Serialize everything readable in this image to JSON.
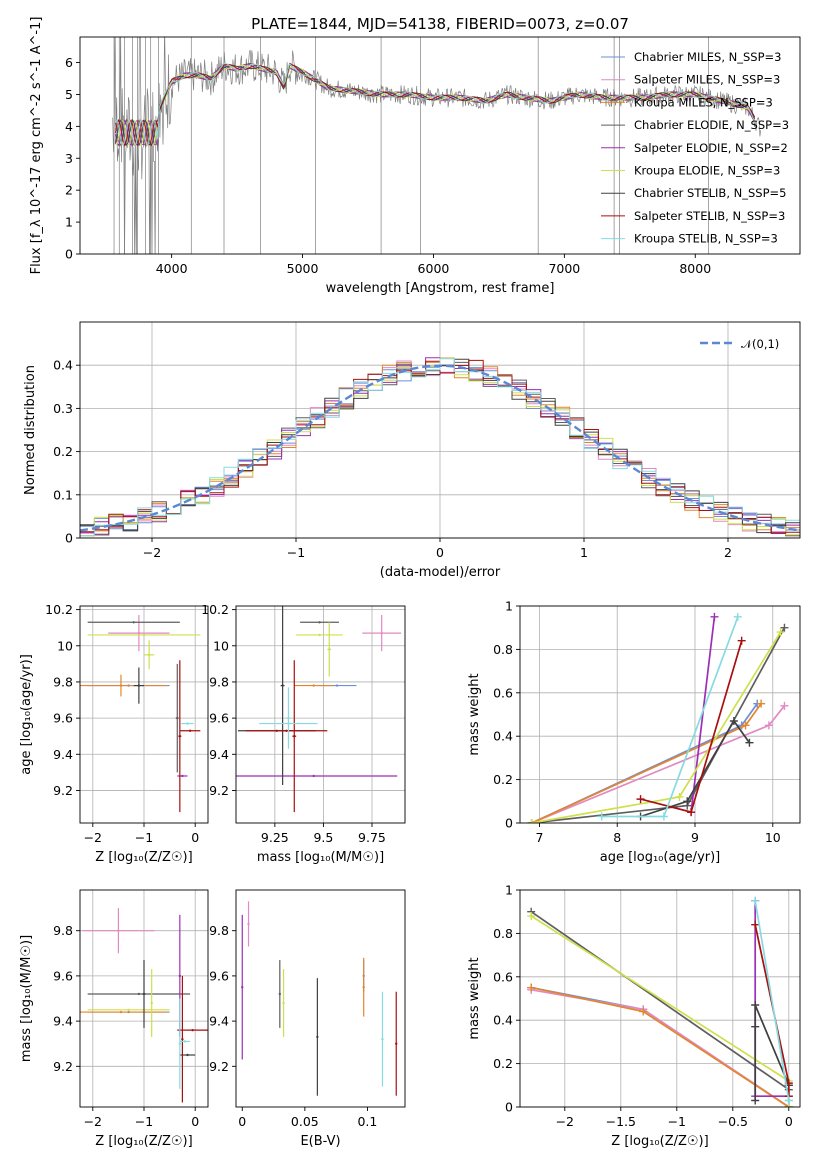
{
  "figure": {
    "title": "PLATE=1844, MJD=54138, FIBERID=0073, z=0.07"
  },
  "series_colors": [
    "#6f8fd6",
    "#e28ac2",
    "#e3862e",
    "#5e5e5e",
    "#9c2fb6",
    "#cfe04c",
    "#404040",
    "#a80f0f",
    "#86dbe0"
  ],
  "chart_data": [
    {
      "id": "spectrum",
      "type": "line",
      "xlabel": "wavelength [Angstrom, rest frame]",
      "ylabel": "Flux [f_λ 10^-17 erg cm^-2 s^-1 A^-1]",
      "xlim": [
        3300,
        8800
      ],
      "ylim": [
        0,
        6.8
      ],
      "xticks": [
        4000,
        5000,
        6000,
        7000,
        8000
      ],
      "yticks": [
        0,
        1,
        2,
        3,
        4,
        5,
        6
      ],
      "grid": false,
      "legend_position": "right",
      "legend": [
        "Chabrier MILES, N_SSP=3",
        "Salpeter MILES, N_SSP=3",
        "Kroupa MILES, N_SSP=3",
        "Chabrier ELODIE, N_SSP=3",
        "Salpeter ELODIE, N_SSP=2",
        "Kroupa ELODIE, N_SSP=3",
        "Chabrier STELIB, N_SSP=5",
        "Salpeter STELIB, N_SSP=3",
        "Kroupa STELIB, N_SSP=3"
      ],
      "data_envelope": {
        "x": [
          3550,
          3600,
          3700,
          3800,
          3900,
          4000,
          4100,
          4200,
          4300,
          4400,
          4500,
          4600,
          4700,
          4800,
          4860,
          4900,
          5000,
          5200,
          5400,
          5600,
          5800,
          6000,
          6200,
          6400,
          6563,
          6700,
          6900,
          7100,
          7300,
          7400,
          7600,
          7800,
          8000,
          8200,
          8400,
          8500
        ],
        "y": [
          4.3,
          4.0,
          3.6,
          3.7,
          4.5,
          5.4,
          5.6,
          5.6,
          5.5,
          5.9,
          5.8,
          5.9,
          5.8,
          5.7,
          5.2,
          5.9,
          5.7,
          5.2,
          5.1,
          5.0,
          5.0,
          4.9,
          4.9,
          4.8,
          5.0,
          4.9,
          4.8,
          5.0,
          4.9,
          4.9,
          4.9,
          5.0,
          5.0,
          4.8,
          4.6,
          3.9
        ]
      },
      "spikes": [
        3560,
        3600,
        3640,
        3700,
        3740,
        3800,
        3840,
        3900,
        4150,
        4400,
        4680,
        5100,
        5600,
        5900,
        6800,
        7380,
        7420,
        8100
      ]
    },
    {
      "id": "residuals",
      "type": "bar",
      "xlabel": "(data-model)/error",
      "ylabel": "Normed distribution",
      "xlim": [
        -2.5,
        2.5
      ],
      "ylim": [
        0,
        0.5
      ],
      "xticks": [
        -2,
        -1,
        0,
        1,
        2
      ],
      "yticks": [
        0.0,
        0.1,
        0.2,
        0.3,
        0.4
      ],
      "grid": true,
      "legend_position": "top-right",
      "legend": [
        "𝒩(0,1)"
      ],
      "bin_width": 0.1,
      "gaussian_sigma": 1.0
    },
    {
      "id": "age-vs-Z",
      "type": "scatter",
      "xlabel": "Z [log₁₀(Z/Z☉)]",
      "ylabel": "age  [log₁₀(age/yr)]",
      "xlim": [
        -2.25,
        0.25
      ],
      "ylim": [
        9.02,
        10.22
      ],
      "xticks": [
        -2,
        -1,
        0
      ],
      "yticks": [
        9.2,
        9.4,
        9.6,
        9.8,
        10.0,
        10.2
      ],
      "grid": true,
      "points": [
        {
          "s": 0,
          "x": -1.3,
          "xerr": 0.8,
          "y": 9.78,
          "yerr": 0.0
        },
        {
          "s": 1,
          "x": -1.1,
          "xerr": 0.6,
          "y": 10.07,
          "yerr": 0.1
        },
        {
          "s": 2,
          "x": -1.45,
          "xerr": 0.9,
          "y": 9.78,
          "yerr": 0.06
        },
        {
          "s": 3,
          "x": -1.2,
          "xerr": 0.9,
          "y": 10.13,
          "yerr": 0.0
        },
        {
          "s": 4,
          "x": -0.25,
          "xerr": 0.1,
          "y": 9.28,
          "yerr": 0.0
        },
        {
          "s": 5,
          "x": -1.0,
          "xerr": 1.1,
          "y": 10.06,
          "yerr": 0.0
        },
        {
          "s": 5,
          "x": -0.9,
          "xerr": 0.1,
          "y": 9.95,
          "yerr": 0.08
        },
        {
          "s": 6,
          "x": -1.1,
          "xerr": 0.1,
          "y": 9.78,
          "yerr": 0.1
        },
        {
          "s": 7,
          "x": -0.1,
          "xerr": 0.2,
          "y": 9.53,
          "yerr": 0.0
        },
        {
          "s": 7,
          "x": -0.3,
          "xerr": 0.03,
          "y": 9.5,
          "yerr": 0.42
        },
        {
          "s": 8,
          "x": -0.15,
          "xerr": 0.12,
          "y": 9.57,
          "yerr": 0.0
        },
        {
          "s": 3,
          "x": -0.35,
          "xerr": 0.03,
          "y": 9.6,
          "yerr": 0.3
        }
      ]
    },
    {
      "id": "age-vs-mass",
      "type": "scatter",
      "xlabel": "mass [log₁₀(M/M☉)]",
      "ylabel": "",
      "xlim": [
        9.05,
        9.92
      ],
      "ylim": [
        9.02,
        10.22
      ],
      "xticks": [
        9.25,
        9.5,
        9.75
      ],
      "yticks": [
        9.2,
        9.4,
        9.6,
        9.8,
        10.0,
        10.2
      ],
      "grid": true,
      "points": [
        {
          "s": 0,
          "x": 9.57,
          "xerr": 0.1,
          "y": 9.78,
          "yerr": 0.0
        },
        {
          "s": 1,
          "x": 9.8,
          "xerr": 0.1,
          "y": 10.07,
          "yerr": 0.1
        },
        {
          "s": 2,
          "x": 9.45,
          "xerr": 0.1,
          "y": 9.78,
          "yerr": 0.0
        },
        {
          "s": 3,
          "x": 9.48,
          "xerr": 0.1,
          "y": 10.13,
          "yerr": 0.0
        },
        {
          "s": 4,
          "x": 9.45,
          "xerr": 0.43,
          "y": 9.28,
          "yerr": 0.0
        },
        {
          "s": 5,
          "x": 9.48,
          "xerr": 0.12,
          "y": 10.06,
          "yerr": 0.0
        },
        {
          "s": 5,
          "x": 9.53,
          "xerr": 0.01,
          "y": 9.98,
          "yerr": 0.15
        },
        {
          "s": 6,
          "x": 9.29,
          "xerr": 0.01,
          "y": 9.78,
          "yerr": 0.55
        },
        {
          "s": 6,
          "x": 9.26,
          "xerr": 0.2,
          "y": 9.53,
          "yerr": 0.0
        },
        {
          "s": 7,
          "x": 9.35,
          "xerr": 0.01,
          "y": 9.5,
          "yerr": 0.42
        },
        {
          "s": 7,
          "x": 9.31,
          "xerr": 0.21,
          "y": 9.53,
          "yerr": 0.0
        },
        {
          "s": 8,
          "x": 9.32,
          "xerr": 0.15,
          "y": 9.57,
          "yerr": 0.0
        },
        {
          "s": 8,
          "x": 9.32,
          "xerr": 0.01,
          "y": 9.6,
          "yerr": 0.17
        }
      ]
    },
    {
      "id": "massweight-vs-age",
      "type": "line",
      "xlabel": "age  [log₁₀(age/yr)]",
      "ylabel": "mass weight",
      "xlim": [
        6.75,
        10.35
      ],
      "ylim": [
        0,
        1.0
      ],
      "xticks": [
        7,
        8,
        9,
        10
      ],
      "yticks": [
        0.0,
        0.2,
        0.4,
        0.6,
        0.8,
        1.0
      ],
      "grid": true,
      "series": [
        {
          "s": 0,
          "x": [
            6.9,
            9.6,
            9.8
          ],
          "y": [
            0.0,
            0.45,
            0.55
          ]
        },
        {
          "s": 1,
          "x": [
            6.9,
            9.95,
            10.15
          ],
          "y": [
            0.0,
            0.45,
            0.54
          ]
        },
        {
          "s": 2,
          "x": [
            6.9,
            9.65,
            9.85
          ],
          "y": [
            0.0,
            0.45,
            0.55
          ]
        },
        {
          "s": 3,
          "x": [
            6.9,
            8.9,
            10.15
          ],
          "y": [
            0.0,
            0.08,
            0.9
          ]
        },
        {
          "s": 4,
          "x": [
            8.95,
            9.25
          ],
          "y": [
            0.05,
            0.95
          ]
        },
        {
          "s": 5,
          "x": [
            6.9,
            8.8,
            10.1
          ],
          "y": [
            0.0,
            0.12,
            0.88
          ]
        },
        {
          "s": 6,
          "x": [
            8.3,
            8.9,
            9.5,
            9.7
          ],
          "y": [
            0.03,
            0.1,
            0.47,
            0.37
          ]
        },
        {
          "s": 7,
          "x": [
            8.3,
            8.95,
            9.6
          ],
          "y": [
            0.11,
            0.05,
            0.84
          ]
        },
        {
          "s": 8,
          "x": [
            7.8,
            8.6,
            9.55
          ],
          "y": [
            0.03,
            0.03,
            0.95
          ]
        }
      ]
    },
    {
      "id": "mass-vs-Z",
      "type": "scatter",
      "xlabel": "Z [log₁₀(Z/Z☉)]",
      "ylabel": "mass [log₁₀(M/M☉)]",
      "xlim": [
        -2.25,
        0.25
      ],
      "ylim": [
        9.02,
        9.98
      ],
      "xticks": [
        -2,
        -1,
        0
      ],
      "yticks": [
        9.2,
        9.4,
        9.6,
        9.8
      ],
      "grid": true,
      "points": [
        {
          "s": 0,
          "x": -1.3,
          "xerr": 0.8,
          "y": 9.44,
          "yerr": 0.0
        },
        {
          "s": 1,
          "x": -1.5,
          "xerr": 0.7,
          "y": 9.8,
          "yerr": 0.1
        },
        {
          "s": 2,
          "x": -1.45,
          "xerr": 0.9,
          "y": 9.44,
          "yerr": 0.0
        },
        {
          "s": 3,
          "x": -1.1,
          "xerr": 1.0,
          "y": 9.52,
          "yerr": 0.0
        },
        {
          "s": 4,
          "x": -0.3,
          "xerr": 0.02,
          "y": 9.6,
          "yerr": 0.27
        },
        {
          "s": 5,
          "x": -1.3,
          "xerr": 0.8,
          "y": 9.45,
          "yerr": 0.0
        },
        {
          "s": 5,
          "x": -0.85,
          "xerr": 0.02,
          "y": 9.48,
          "yerr": 0.15
        },
        {
          "s": 6,
          "x": -1.0,
          "xerr": 0.03,
          "y": 9.52,
          "yerr": 0.15
        },
        {
          "s": 6,
          "x": -0.15,
          "xerr": 0.15,
          "y": 9.25,
          "yerr": 0.0
        },
        {
          "s": 7,
          "x": -0.05,
          "xerr": 0.3,
          "y": 9.36,
          "yerr": 0.0
        },
        {
          "s": 7,
          "x": -0.25,
          "xerr": 0.01,
          "y": 9.32,
          "yerr": 0.28
        },
        {
          "s": 8,
          "x": -0.2,
          "xerr": 0.1,
          "y": 9.31,
          "yerr": 0.0
        },
        {
          "s": 8,
          "x": -0.3,
          "xerr": 0.01,
          "y": 9.3,
          "yerr": 0.2
        }
      ]
    },
    {
      "id": "mass-vs-EBV",
      "type": "scatter",
      "xlabel": "E(B-V)",
      "ylabel": "",
      "xlim": [
        -0.005,
        0.13
      ],
      "ylim": [
        9.02,
        9.98
      ],
      "xticks": [
        0.0,
        0.05,
        0.1
      ],
      "yticks": [
        9.2,
        9.4,
        9.6,
        9.8
      ],
      "grid": false,
      "points": [
        {
          "s": 0,
          "x": 0.097,
          "xerr": 0.0,
          "y": 9.6,
          "yerr": 0.07
        },
        {
          "s": 1,
          "x": 0.005,
          "xerr": 0.0,
          "y": 9.83,
          "yerr": 0.1
        },
        {
          "s": 2,
          "x": 0.097,
          "xerr": 0.0,
          "y": 9.55,
          "yerr": 0.13
        },
        {
          "s": 3,
          "x": 0.03,
          "xerr": 0.0,
          "y": 9.52,
          "yerr": 0.15
        },
        {
          "s": 4,
          "x": 0.0,
          "xerr": 0.0,
          "y": 9.55,
          "yerr": 0.32
        },
        {
          "s": 5,
          "x": 0.033,
          "xerr": 0.0,
          "y": 9.48,
          "yerr": 0.15
        },
        {
          "s": 6,
          "x": 0.06,
          "xerr": 0.0,
          "y": 9.33,
          "yerr": 0.26
        },
        {
          "s": 7,
          "x": 0.123,
          "xerr": 0.0,
          "y": 9.3,
          "yerr": 0.23
        },
        {
          "s": 8,
          "x": 0.112,
          "xerr": 0.0,
          "y": 9.32,
          "yerr": 0.21
        }
      ]
    },
    {
      "id": "massweight-vs-Z",
      "type": "line",
      "xlabel": "Z [log₁₀(Z/Z☉)]",
      "ylabel": "mass weight",
      "xlim": [
        -2.4,
        0.1
      ],
      "ylim": [
        0,
        1.0
      ],
      "xticks": [
        -2.0,
        -1.5,
        -1.0,
        -0.5,
        0.0
      ],
      "yticks": [
        0.0,
        0.2,
        0.4,
        0.6,
        0.8,
        1.0
      ],
      "grid": true,
      "series": [
        {
          "s": 0,
          "x": [
            -2.3,
            -1.3,
            0.0
          ],
          "y": [
            0.55,
            0.45,
            0.0
          ]
        },
        {
          "s": 1,
          "x": [
            -2.3,
            -1.3,
            0.0
          ],
          "y": [
            0.54,
            0.45,
            0.0
          ]
        },
        {
          "s": 2,
          "x": [
            -2.3,
            -1.3,
            0.0
          ],
          "y": [
            0.55,
            0.44,
            0.0
          ]
        },
        {
          "s": 3,
          "x": [
            -2.3,
            0.0,
            0.0
          ],
          "y": [
            0.9,
            0.08,
            0.0
          ]
        },
        {
          "s": 4,
          "x": [
            -0.3,
            -0.3,
            0.0
          ],
          "y": [
            0.95,
            0.05,
            0.05
          ]
        },
        {
          "s": 5,
          "x": [
            -2.3,
            0.0,
            0.0
          ],
          "y": [
            0.88,
            0.12,
            0.0
          ]
        },
        {
          "s": 6,
          "x": [
            -0.3,
            -0.3,
            -0.3,
            0.0,
            0.0
          ],
          "y": [
            0.03,
            0.37,
            0.47,
            0.1,
            0.1
          ]
        },
        {
          "s": 7,
          "x": [
            -0.3,
            0.0,
            0.0
          ],
          "y": [
            0.84,
            0.11,
            0.05
          ]
        },
        {
          "s": 8,
          "x": [
            -0.3,
            0.0,
            0.0
          ],
          "y": [
            0.95,
            0.03,
            0.03
          ]
        }
      ]
    }
  ]
}
